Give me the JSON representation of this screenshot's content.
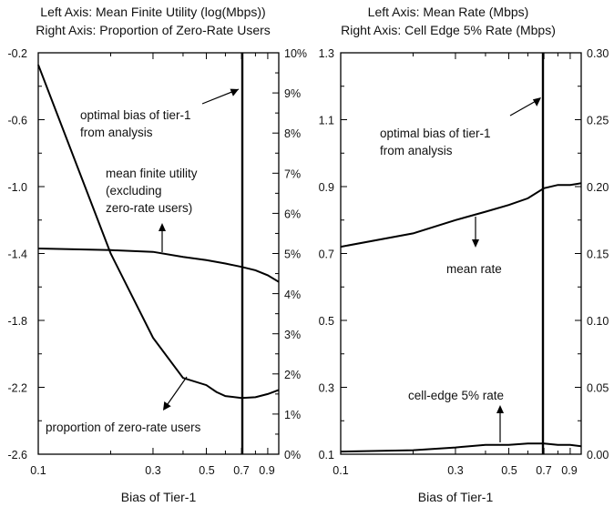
{
  "chart_data": [
    {
      "type": "line",
      "title_lines": [
        "Left Axis: Mean Finite Utility (log(Mbps))",
        "Right Axis: Proportion of Zero-Rate Users"
      ],
      "xlabel": "Bias of Tier-1",
      "x_scale": "log",
      "xlim": [
        0.1,
        1.0
      ],
      "x_tick_labels": [
        {
          "value": 0.1,
          "label": "0.1"
        },
        {
          "value": 0.3,
          "label": "0.3"
        },
        {
          "value": 0.5,
          "label": "0.5"
        },
        {
          "value": 0.7,
          "label": "0.7"
        },
        {
          "value": 0.9,
          "label": "0.9"
        }
      ],
      "y_left_lim": [
        -2.6,
        -0.2
      ],
      "y_left_ticks": [
        "-0.2",
        "-0.6",
        "-1.0",
        "-1.4",
        "-1.8",
        "-2.2",
        "-2.6"
      ],
      "y_right_lim": [
        0,
        10
      ],
      "y_right_ticks": [
        "0%",
        "1%",
        "2%",
        "3%",
        "4%",
        "5%",
        "6%",
        "7%",
        "8%",
        "9%",
        "10%"
      ],
      "series": [
        {
          "axis": "left",
          "x": [
            0.1,
            0.2,
            0.3,
            0.4,
            0.5,
            0.6,
            0.7,
            0.8,
            0.9,
            1.0
          ],
          "y": [
            -1.37,
            -1.38,
            -1.39,
            -1.42,
            -1.44,
            -1.46,
            -1.48,
            -1.5,
            -1.53,
            -1.57
          ]
        },
        {
          "axis": "right",
          "x": [
            0.1,
            0.2,
            0.3,
            0.4,
            0.5,
            0.55,
            0.6,
            0.7,
            0.8,
            0.9,
            1.0
          ],
          "y": [
            9.7,
            5.0,
            2.9,
            1.9,
            1.72,
            1.55,
            1.45,
            1.4,
            1.42,
            1.5,
            1.6
          ]
        }
      ],
      "vertical_line_x": 0.7,
      "annotations": [
        {
          "lines": [
            "optimal bias of tier-1",
            "from analysis"
          ]
        },
        {
          "lines": [
            "mean finite utility",
            "(excluding",
            "zero-rate users)"
          ]
        },
        {
          "lines": [
            "proportion of zero-rate users"
          ]
        }
      ]
    },
    {
      "type": "line",
      "title_lines": [
        "Left Axis: Mean Rate (Mbps)",
        "Right Axis: Cell Edge 5% Rate (Mbps)"
      ],
      "xlabel": "Bias of Tier-1",
      "x_scale": "log",
      "xlim": [
        0.1,
        1.0
      ],
      "x_tick_labels": [
        {
          "value": 0.1,
          "label": "0.1"
        },
        {
          "value": 0.3,
          "label": "0.3"
        },
        {
          "value": 0.5,
          "label": "0.5"
        },
        {
          "value": 0.7,
          "label": "0.7"
        },
        {
          "value": 0.9,
          "label": "0.9"
        }
      ],
      "y_left_lim": [
        0.1,
        1.3
      ],
      "y_left_ticks": [
        "1.3",
        "1.1",
        "0.9",
        "0.7",
        "0.5",
        "0.3",
        "0.1"
      ],
      "y_right_lim": [
        0,
        0.3
      ],
      "y_right_ticks": [
        "0.30",
        "0.25",
        "0.20",
        "0.15",
        "0.10",
        "0.05",
        "0.00"
      ],
      "series": [
        {
          "axis": "left",
          "x": [
            0.1,
            0.2,
            0.3,
            0.4,
            0.5,
            0.6,
            0.7,
            0.8,
            0.9,
            1.0
          ],
          "y": [
            0.72,
            0.76,
            0.8,
            0.825,
            0.845,
            0.865,
            0.895,
            0.905,
            0.905,
            0.91
          ]
        },
        {
          "axis": "right",
          "x": [
            0.1,
            0.2,
            0.3,
            0.4,
            0.5,
            0.6,
            0.7,
            0.8,
            0.9,
            1.0
          ],
          "y": [
            0.002,
            0.003,
            0.005,
            0.007,
            0.007,
            0.008,
            0.008,
            0.007,
            0.007,
            0.006
          ]
        }
      ],
      "vertical_line_x": 0.7,
      "annotations": [
        {
          "lines": [
            "optimal bias of tier-1",
            "from analysis"
          ]
        },
        {
          "lines": [
            "mean rate"
          ]
        },
        {
          "lines": [
            "cell-edge 5% rate"
          ]
        }
      ]
    }
  ]
}
